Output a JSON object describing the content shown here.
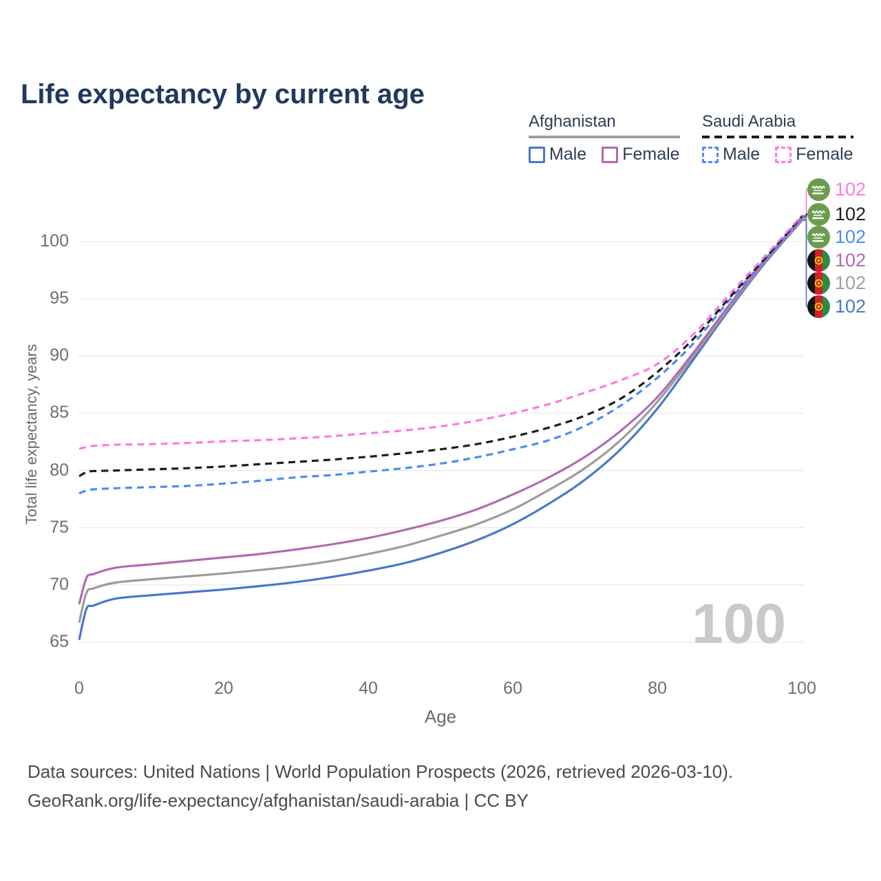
{
  "title": "Life expectancy by current age",
  "watermark": "100",
  "legend": {
    "groups": [
      {
        "label": "Afghanistan",
        "line_style": "solid",
        "underline_color": "#9e9e9e",
        "items": [
          {
            "label": "Male",
            "color": "#4a77c9"
          },
          {
            "label": "Female",
            "color": "#b16bb1"
          }
        ]
      },
      {
        "label": "Saudi Arabia",
        "line_style": "dashed",
        "underline_color": "#1a1a1a",
        "items": [
          {
            "label": "Male",
            "color": "#4b8bf5"
          },
          {
            "label": "Female",
            "color": "#ff79e1"
          }
        ]
      }
    ]
  },
  "chart_data": {
    "type": "line",
    "title": "Life expectancy by current age",
    "xlabel": "Age",
    "ylabel": "Total life expectancy, years",
    "x_ticks": [
      0,
      20,
      40,
      60,
      80,
      100
    ],
    "y_ticks": [
      65,
      70,
      75,
      80,
      85,
      90,
      95,
      100
    ],
    "xlim": [
      0,
      100
    ],
    "ylim": [
      63,
      104
    ],
    "grid": "horizontal",
    "legend_position": "top-right",
    "x_ages": [
      0,
      1,
      2,
      5,
      10,
      15,
      20,
      25,
      30,
      35,
      40,
      45,
      50,
      55,
      60,
      65,
      70,
      75,
      80,
      85,
      90,
      95,
      100
    ],
    "series": [
      {
        "id": "sau-female",
        "name": "Saudi Arabia Female",
        "color": "#ff79e1",
        "dashed": true,
        "values": [
          81.9,
          82.05,
          82.15,
          82.25,
          82.3,
          82.4,
          82.55,
          82.65,
          82.8,
          83.0,
          83.25,
          83.5,
          83.85,
          84.35,
          85.0,
          85.8,
          86.8,
          87.9,
          89.3,
          91.9,
          95.4,
          98.8,
          102.3
        ]
      },
      {
        "id": "sau-total",
        "name": "Saudi Arabia Total",
        "color": "#1c1c1c",
        "dashed": true,
        "values": [
          79.5,
          79.85,
          79.95,
          80.0,
          80.1,
          80.2,
          80.35,
          80.55,
          80.75,
          80.95,
          81.2,
          81.5,
          81.85,
          82.3,
          82.95,
          83.75,
          84.8,
          86.3,
          88.6,
          91.5,
          95.1,
          98.6,
          102.2
        ]
      },
      {
        "id": "sau-male",
        "name": "Saudi Arabia Male",
        "color": "#4b8bf5",
        "dashed": true,
        "values": [
          78.0,
          78.25,
          78.35,
          78.45,
          78.55,
          78.65,
          78.85,
          79.1,
          79.4,
          79.6,
          79.9,
          80.2,
          80.6,
          81.15,
          81.85,
          82.65,
          83.9,
          85.7,
          88.1,
          91.1,
          94.9,
          98.5,
          102.15
        ]
      },
      {
        "id": "afg-female",
        "name": "Afghanistan Female",
        "color": "#b16bb1",
        "dashed": false,
        "values": [
          68.3,
          70.6,
          70.95,
          71.5,
          71.8,
          72.1,
          72.4,
          72.7,
          73.1,
          73.55,
          74.1,
          74.8,
          75.6,
          76.6,
          77.9,
          79.4,
          81.2,
          83.5,
          86.4,
          90.3,
          94.5,
          98.4,
          102.05
        ]
      },
      {
        "id": "afg-total",
        "name": "Afghanistan Total",
        "color": "#9c9c9c",
        "dashed": false,
        "values": [
          66.7,
          69.3,
          69.7,
          70.2,
          70.5,
          70.75,
          71.0,
          71.3,
          71.65,
          72.1,
          72.7,
          73.4,
          74.3,
          75.3,
          76.6,
          78.3,
          80.2,
          82.7,
          86.0,
          90.0,
          94.3,
          98.3,
          101.95
        ]
      },
      {
        "id": "afg-male",
        "name": "Afghanistan Male",
        "color": "#4a77c9",
        "dashed": false,
        "values": [
          65.2,
          67.9,
          68.2,
          68.8,
          69.1,
          69.35,
          69.6,
          69.9,
          70.25,
          70.7,
          71.25,
          71.9,
          72.8,
          73.9,
          75.3,
          77.1,
          79.2,
          81.9,
          85.4,
          89.7,
          94.1,
          98.2,
          101.85
        ]
      }
    ]
  },
  "end_labels": [
    {
      "series": "sau-female",
      "flag": "saudi-arabia",
      "value": "102",
      "color": "#ff79e1"
    },
    {
      "series": "sau-total",
      "flag": "saudi-arabia",
      "value": "102",
      "color": "#1c1c1c"
    },
    {
      "series": "sau-male",
      "flag": "saudi-arabia",
      "value": "102",
      "color": "#4b8bf5"
    },
    {
      "series": "afg-female",
      "flag": "afghanistan",
      "value": "102",
      "color": "#b16bb1"
    },
    {
      "series": "afg-total",
      "flag": "afghanistan",
      "value": "102",
      "color": "#a0a0a0"
    },
    {
      "series": "afg-male",
      "flag": "afghanistan",
      "value": "102",
      "color": "#4a77c9"
    }
  ],
  "footer": {
    "line1": "Data sources: United Nations | World Population Prospects (2026, retrieved 2026-03-10).",
    "line2": "GeoRank.org/life-expectancy/afghanistan/saudi-arabia | CC BY"
  },
  "colors": {
    "title": "#1f3a5e",
    "grid": "#e9e9e9",
    "tick_text": "#6e6e6e",
    "axis_title_text": "#6a6a6a",
    "watermark_text": "#c9c9c9",
    "footer_text": "#4a4a4a",
    "saudi_flag_green": "#6b9c4e",
    "afghan_flag_black": "#141414",
    "afghan_flag_red": "#cf2028",
    "afghan_flag_green": "#2e8b46",
    "afghan_emblem_yellow": "#ffcf00"
  }
}
